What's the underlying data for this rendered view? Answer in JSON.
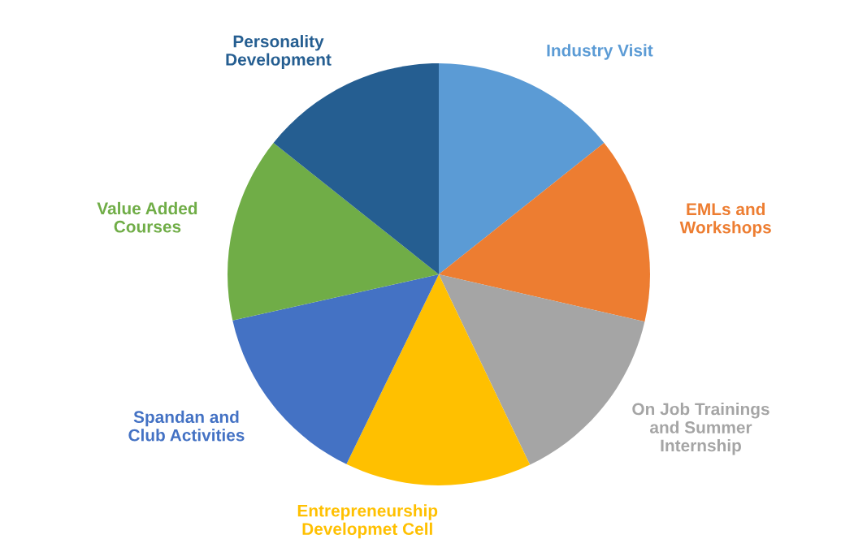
{
  "chart_data": {
    "type": "pie",
    "categories": [
      "Industry Visit",
      "EMLs and\nWorkshops",
      "On Job Trainings\nand Summer\nInternship",
      "Entrepreneurship\nDevelopmet Cell",
      "Spandan and\nClub Activities",
      "Value Added\nCourses",
      "Personality\nDevelopment"
    ],
    "values": [
      14.3,
      14.3,
      14.3,
      14.3,
      14.3,
      14.2,
      14.3
    ],
    "colors": [
      "#5b9bd5",
      "#ed7d31",
      "#a5a5a5",
      "#ffc000",
      "#4472c4",
      "#70ad47",
      "#255e91"
    ],
    "legend": false
  }
}
